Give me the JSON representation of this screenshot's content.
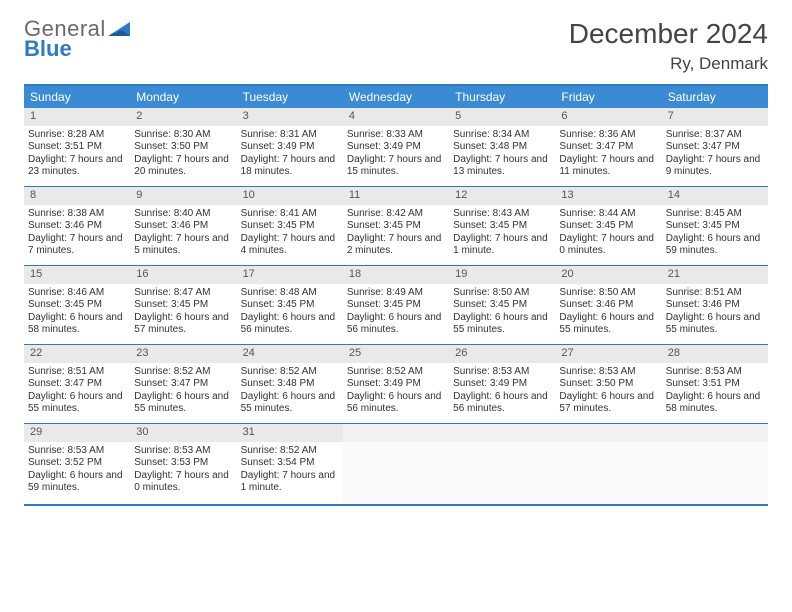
{
  "logo": {
    "line1": "General",
    "line2": "Blue"
  },
  "title": "December 2024",
  "location": "Ry, Denmark",
  "colors": {
    "accent": "#2f7bc2",
    "header_bg": "#3b8bd4",
    "header_text": "#ffffff",
    "daynum_bg": "#e9e9e9",
    "text": "#333333",
    "logo_gray": "#6a6a6a"
  },
  "day_names": [
    "Sunday",
    "Monday",
    "Tuesday",
    "Wednesday",
    "Thursday",
    "Friday",
    "Saturday"
  ],
  "weeks": [
    [
      {
        "n": "1",
        "sr": "8:28 AM",
        "ss": "3:51 PM",
        "dl": "7 hours and 23 minutes."
      },
      {
        "n": "2",
        "sr": "8:30 AM",
        "ss": "3:50 PM",
        "dl": "7 hours and 20 minutes."
      },
      {
        "n": "3",
        "sr": "8:31 AM",
        "ss": "3:49 PM",
        "dl": "7 hours and 18 minutes."
      },
      {
        "n": "4",
        "sr": "8:33 AM",
        "ss": "3:49 PM",
        "dl": "7 hours and 15 minutes."
      },
      {
        "n": "5",
        "sr": "8:34 AM",
        "ss": "3:48 PM",
        "dl": "7 hours and 13 minutes."
      },
      {
        "n": "6",
        "sr": "8:36 AM",
        "ss": "3:47 PM",
        "dl": "7 hours and 11 minutes."
      },
      {
        "n": "7",
        "sr": "8:37 AM",
        "ss": "3:47 PM",
        "dl": "7 hours and 9 minutes."
      }
    ],
    [
      {
        "n": "8",
        "sr": "8:38 AM",
        "ss": "3:46 PM",
        "dl": "7 hours and 7 minutes."
      },
      {
        "n": "9",
        "sr": "8:40 AM",
        "ss": "3:46 PM",
        "dl": "7 hours and 5 minutes."
      },
      {
        "n": "10",
        "sr": "8:41 AM",
        "ss": "3:45 PM",
        "dl": "7 hours and 4 minutes."
      },
      {
        "n": "11",
        "sr": "8:42 AM",
        "ss": "3:45 PM",
        "dl": "7 hours and 2 minutes."
      },
      {
        "n": "12",
        "sr": "8:43 AM",
        "ss": "3:45 PM",
        "dl": "7 hours and 1 minute."
      },
      {
        "n": "13",
        "sr": "8:44 AM",
        "ss": "3:45 PM",
        "dl": "7 hours and 0 minutes."
      },
      {
        "n": "14",
        "sr": "8:45 AM",
        "ss": "3:45 PM",
        "dl": "6 hours and 59 minutes."
      }
    ],
    [
      {
        "n": "15",
        "sr": "8:46 AM",
        "ss": "3:45 PM",
        "dl": "6 hours and 58 minutes."
      },
      {
        "n": "16",
        "sr": "8:47 AM",
        "ss": "3:45 PM",
        "dl": "6 hours and 57 minutes."
      },
      {
        "n": "17",
        "sr": "8:48 AM",
        "ss": "3:45 PM",
        "dl": "6 hours and 56 minutes."
      },
      {
        "n": "18",
        "sr": "8:49 AM",
        "ss": "3:45 PM",
        "dl": "6 hours and 56 minutes."
      },
      {
        "n": "19",
        "sr": "8:50 AM",
        "ss": "3:45 PM",
        "dl": "6 hours and 55 minutes."
      },
      {
        "n": "20",
        "sr": "8:50 AM",
        "ss": "3:46 PM",
        "dl": "6 hours and 55 minutes."
      },
      {
        "n": "21",
        "sr": "8:51 AM",
        "ss": "3:46 PM",
        "dl": "6 hours and 55 minutes."
      }
    ],
    [
      {
        "n": "22",
        "sr": "8:51 AM",
        "ss": "3:47 PM",
        "dl": "6 hours and 55 minutes."
      },
      {
        "n": "23",
        "sr": "8:52 AM",
        "ss": "3:47 PM",
        "dl": "6 hours and 55 minutes."
      },
      {
        "n": "24",
        "sr": "8:52 AM",
        "ss": "3:48 PM",
        "dl": "6 hours and 55 minutes."
      },
      {
        "n": "25",
        "sr": "8:52 AM",
        "ss": "3:49 PM",
        "dl": "6 hours and 56 minutes."
      },
      {
        "n": "26",
        "sr": "8:53 AM",
        "ss": "3:49 PM",
        "dl": "6 hours and 56 minutes."
      },
      {
        "n": "27",
        "sr": "8:53 AM",
        "ss": "3:50 PM",
        "dl": "6 hours and 57 minutes."
      },
      {
        "n": "28",
        "sr": "8:53 AM",
        "ss": "3:51 PM",
        "dl": "6 hours and 58 minutes."
      }
    ],
    [
      {
        "n": "29",
        "sr": "8:53 AM",
        "ss": "3:52 PM",
        "dl": "6 hours and 59 minutes."
      },
      {
        "n": "30",
        "sr": "8:53 AM",
        "ss": "3:53 PM",
        "dl": "7 hours and 0 minutes."
      },
      {
        "n": "31",
        "sr": "8:52 AM",
        "ss": "3:54 PM",
        "dl": "7 hours and 1 minute."
      },
      {
        "empty": true
      },
      {
        "empty": true
      },
      {
        "empty": true
      },
      {
        "empty": true
      }
    ]
  ],
  "labels": {
    "sunrise": "Sunrise:",
    "sunset": "Sunset:",
    "daylight": "Daylight:"
  }
}
